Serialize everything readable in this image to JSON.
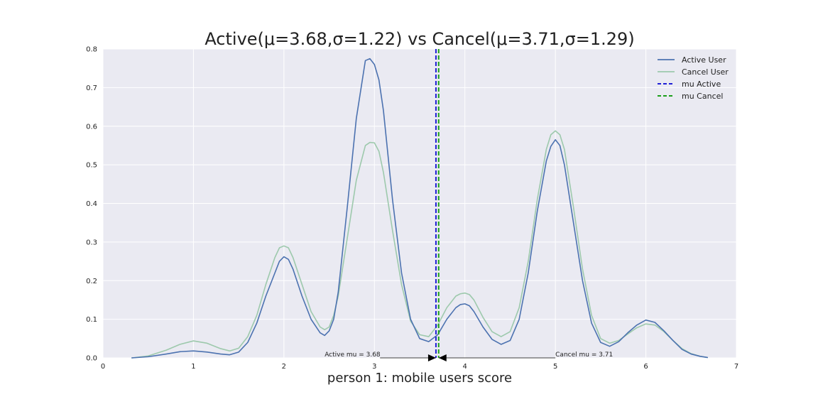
{
  "chart_data": {
    "type": "line",
    "title": "Active(μ=3.68,σ=1.22) vs Cancel(μ=3.71,σ=1.29)",
    "xlabel": "person 1: mobile users score",
    "ylabel": "",
    "xlim": [
      0,
      7
    ],
    "ylim": [
      0,
      0.8
    ],
    "x_ticks": [
      "0",
      "1",
      "2",
      "3",
      "4",
      "5",
      "6",
      "7"
    ],
    "y_ticks": [
      "0.0",
      "0.1",
      "0.2",
      "0.3",
      "0.4",
      "0.5",
      "0.6",
      "0.7",
      "0.8"
    ],
    "grid": true,
    "legend_placement": "top-right",
    "series": [
      {
        "name": "Active User",
        "color": "#4c72b0",
        "x": [
          0.32,
          0.5,
          0.7,
          0.85,
          1.0,
          1.15,
          1.3,
          1.4,
          1.5,
          1.6,
          1.7,
          1.8,
          1.9,
          1.95,
          2.0,
          2.05,
          2.1,
          2.2,
          2.3,
          2.4,
          2.45,
          2.5,
          2.55,
          2.6,
          2.7,
          2.8,
          2.9,
          2.95,
          3.0,
          3.05,
          3.1,
          3.2,
          3.3,
          3.4,
          3.5,
          3.6,
          3.7,
          3.8,
          3.9,
          3.95,
          4.0,
          4.05,
          4.1,
          4.2,
          4.3,
          4.4,
          4.5,
          4.6,
          4.7,
          4.8,
          4.9,
          4.95,
          5.0,
          5.05,
          5.1,
          5.2,
          5.3,
          5.4,
          5.5,
          5.6,
          5.7,
          5.8,
          5.9,
          6.0,
          6.1,
          6.2,
          6.3,
          6.4,
          6.5,
          6.6,
          6.68
        ],
        "y": [
          0.0,
          0.003,
          0.01,
          0.016,
          0.018,
          0.015,
          0.01,
          0.008,
          0.015,
          0.04,
          0.09,
          0.16,
          0.22,
          0.25,
          0.262,
          0.255,
          0.23,
          0.16,
          0.1,
          0.065,
          0.058,
          0.07,
          0.1,
          0.17,
          0.39,
          0.62,
          0.77,
          0.775,
          0.76,
          0.72,
          0.64,
          0.41,
          0.22,
          0.1,
          0.05,
          0.042,
          0.06,
          0.1,
          0.13,
          0.138,
          0.14,
          0.135,
          0.12,
          0.08,
          0.048,
          0.035,
          0.045,
          0.1,
          0.22,
          0.38,
          0.51,
          0.548,
          0.565,
          0.55,
          0.5,
          0.35,
          0.2,
          0.09,
          0.04,
          0.03,
          0.042,
          0.065,
          0.085,
          0.098,
          0.092,
          0.07,
          0.045,
          0.022,
          0.01,
          0.004,
          0.001
        ]
      },
      {
        "name": "Cancel User",
        "color": "#9dc9ac",
        "x": [
          0.32,
          0.5,
          0.7,
          0.85,
          1.0,
          1.15,
          1.3,
          1.4,
          1.5,
          1.6,
          1.7,
          1.8,
          1.9,
          1.95,
          2.0,
          2.05,
          2.1,
          2.2,
          2.3,
          2.4,
          2.45,
          2.5,
          2.55,
          2.6,
          2.7,
          2.8,
          2.9,
          2.95,
          3.0,
          3.05,
          3.1,
          3.2,
          3.3,
          3.4,
          3.5,
          3.6,
          3.7,
          3.8,
          3.9,
          3.95,
          4.0,
          4.05,
          4.1,
          4.2,
          4.3,
          4.4,
          4.5,
          4.6,
          4.7,
          4.8,
          4.9,
          4.95,
          5.0,
          5.05,
          5.1,
          5.2,
          5.3,
          5.4,
          5.5,
          5.6,
          5.7,
          5.8,
          5.9,
          6.0,
          6.1,
          6.2,
          6.3,
          6.4,
          6.5,
          6.6,
          6.68
        ],
        "y": [
          0.0,
          0.005,
          0.02,
          0.035,
          0.044,
          0.038,
          0.024,
          0.018,
          0.025,
          0.055,
          0.11,
          0.19,
          0.26,
          0.285,
          0.29,
          0.285,
          0.26,
          0.19,
          0.12,
          0.08,
          0.073,
          0.08,
          0.11,
          0.16,
          0.31,
          0.46,
          0.55,
          0.558,
          0.557,
          0.535,
          0.48,
          0.33,
          0.19,
          0.095,
          0.06,
          0.055,
          0.085,
          0.13,
          0.16,
          0.166,
          0.168,
          0.164,
          0.15,
          0.105,
          0.068,
          0.055,
          0.068,
          0.13,
          0.25,
          0.41,
          0.54,
          0.578,
          0.588,
          0.578,
          0.54,
          0.39,
          0.23,
          0.11,
          0.05,
          0.038,
          0.045,
          0.062,
          0.078,
          0.088,
          0.085,
          0.068,
          0.045,
          0.024,
          0.011,
          0.004,
          0.001
        ]
      }
    ],
    "mean_lines": [
      {
        "name": "mu Active",
        "x": 3.68,
        "color": "#1f1fd6"
      },
      {
        "name": "mu Cancel",
        "x": 3.71,
        "color": "#1a9e1a"
      }
    ],
    "annotations": [
      {
        "text": "Active mu = 3.68",
        "x": 3.68,
        "y": 0.0,
        "text_x": 2.45,
        "align": "left"
      },
      {
        "text": "Cancel mu = 3.71",
        "x": 3.71,
        "y": 0.0,
        "text_x": 5.0,
        "align": "left"
      }
    ]
  }
}
